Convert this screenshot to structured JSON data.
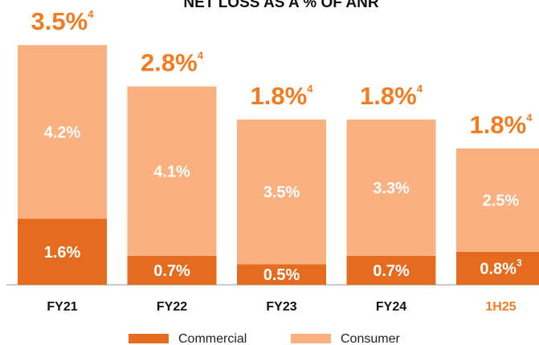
{
  "chart_data": {
    "type": "stacked-bar",
    "title": "NET LOSS AS A % OF ANR",
    "categories": [
      "FY21",
      "FY22",
      "FY23",
      "FY24",
      "1H25"
    ],
    "category_colors": [
      "#111111",
      "#111111",
      "#111111",
      "#111111",
      "#f47b20"
    ],
    "series": [
      {
        "name": "Commercial",
        "color": "#e56b1f",
        "values": [
          1.6,
          0.7,
          0.5,
          0.7,
          0.8
        ],
        "value_labels": [
          "1.6%",
          "0.7%",
          "0.5%",
          "0.7%",
          "0.8%"
        ],
        "footnotes": [
          null,
          null,
          null,
          null,
          "3"
        ]
      },
      {
        "name": "Consumer",
        "color": "#fbb07f",
        "values": [
          4.2,
          4.1,
          3.5,
          3.3,
          2.5
        ],
        "value_labels": [
          "4.2%",
          "4.1%",
          "3.5%",
          "3.3%",
          "2.5%"
        ]
      }
    ],
    "totals": {
      "values": [
        3.5,
        2.8,
        1.8,
        1.8,
        1.8
      ],
      "value_labels": [
        "3.5%",
        "2.8%",
        "1.8%",
        "1.8%",
        "1.8%"
      ],
      "footnotes": [
        "4",
        "4",
        "4",
        "4",
        "4"
      ],
      "color": "#f47b20"
    },
    "ylim": [
      0,
      6.6
    ]
  }
}
